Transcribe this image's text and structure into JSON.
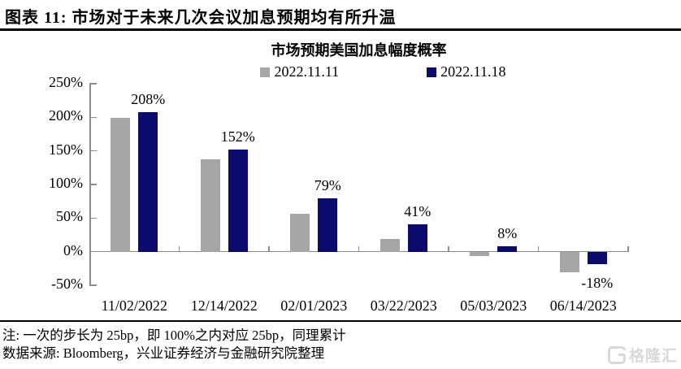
{
  "header": {
    "title": "图表 11: 市场对于未来几次会议加息预期均有所升温"
  },
  "chart_data": {
    "type": "bar",
    "title": "市场预期美国加息幅度概率",
    "categories": [
      "11/02/2022",
      "12/14/2022",
      "02/01/2023",
      "03/22/2023",
      "05/03/2023",
      "06/14/2023"
    ],
    "series": [
      {
        "name": "2022.11.11",
        "color": "#a6a6a6",
        "values": [
          199,
          137,
          57,
          19,
          -5,
          -30
        ]
      },
      {
        "name": "2022.11.18",
        "color": "#0b0b6b",
        "values": [
          208,
          152,
          79,
          41,
          8,
          -18
        ],
        "data_labels": [
          "208%",
          "152%",
          "79%",
          "41%",
          "8%",
          "-18%"
        ]
      }
    ],
    "ylim": [
      -50,
      250
    ],
    "yticks": [
      250,
      200,
      150,
      100,
      50,
      0,
      -50
    ],
    "ytick_labels": [
      "250%",
      "200%",
      "150%",
      "100%",
      "50%",
      "0%",
      "-50%"
    ],
    "legend_position": "top",
    "grid": false,
    "axis_color": "#8c8c8c"
  },
  "footer": {
    "note": "注: 一次的步长为 25bp，即 100%之内对应 25bp，同理累计",
    "source": "数据来源: Bloomberg，兴业证券经济与金融研究院整理"
  },
  "watermark": {
    "text": "格隆汇",
    "icon": "gelonghui-g-logo"
  }
}
